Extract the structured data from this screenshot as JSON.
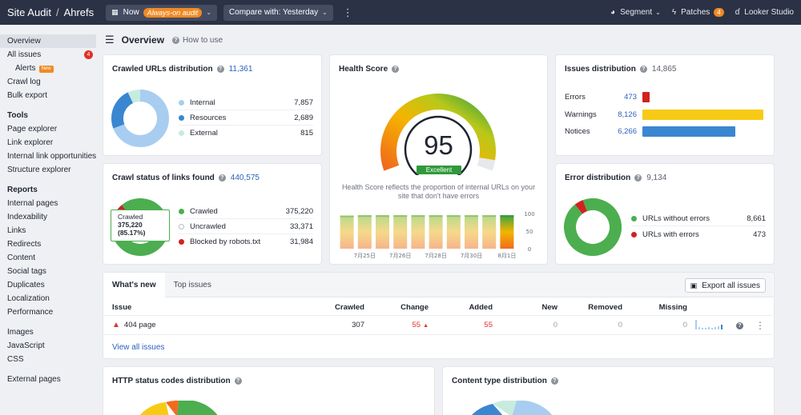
{
  "topbar": {
    "app": "Site Audit",
    "separator": "/",
    "project": "Ahrefs",
    "now_label": "Now",
    "now_badge": "Always-on audit",
    "compare_label": "Compare with: Yesterday",
    "segment_label": "Segment",
    "patches_label": "Patches",
    "patches_count": "4",
    "looker_label": "Looker Studio"
  },
  "sidebar": {
    "overview": "Overview",
    "all_issues": "All issues",
    "all_issues_count": "4",
    "alerts": "Alerts",
    "alerts_tag": "New",
    "crawl_log": "Crawl log",
    "bulk_export": "Bulk export",
    "tools_heading": "Tools",
    "tools": [
      "Page explorer",
      "Link explorer",
      "Internal link opportunities",
      "Structure explorer"
    ],
    "reports_heading": "Reports",
    "reports": [
      "Internal pages",
      "Indexability",
      "Links",
      "Redirects",
      "Content",
      "Social tags",
      "Duplicates",
      "Localization",
      "Performance"
    ],
    "resources": [
      "Images",
      "JavaScript",
      "CSS"
    ],
    "external": "External pages"
  },
  "header": {
    "title": "Overview",
    "howto": "How to use"
  },
  "crawled_urls": {
    "title": "Crawled URLs distribution",
    "total": "11,361",
    "items": [
      {
        "label": "Internal",
        "value": "7,857",
        "count": 7857,
        "color": "#a8cdf0"
      },
      {
        "label": "Resources",
        "value": "2,689",
        "count": 2689,
        "color": "#3a86d1"
      },
      {
        "label": "External",
        "value": "815",
        "count": 815,
        "color": "#c8ebe0"
      }
    ]
  },
  "crawl_status": {
    "title": "Crawl status of links found",
    "total": "440,575",
    "tooltip_label": "Crawled",
    "tooltip_value": "375,220",
    "tooltip_pct": "(85.17%)",
    "items": [
      {
        "label": "Crawled",
        "value": "375,220",
        "count": 375220,
        "color": "#4cae4f"
      },
      {
        "label": "Uncrawled",
        "value": "33,371",
        "count": 33371,
        "color": "#e2e5ea"
      },
      {
        "label": "Blocked by robots.txt",
        "value": "31,984",
        "count": 31984,
        "color": "#d0231f"
      }
    ]
  },
  "health": {
    "title": "Health Score",
    "score": "95",
    "score_value": 95,
    "rating": "Excellent",
    "caption": "Health Score reflects the proportion of internal URLs on your site that don't have errors",
    "chart_data": {
      "type": "bar",
      "categories": [
        "",
        "7月25日",
        "",
        "7月26日",
        "",
        "7月28日",
        "",
        "7月30日",
        "",
        "8月1日"
      ],
      "values": [
        94,
        95,
        95,
        95,
        95,
        95,
        95,
        95,
        95,
        95
      ],
      "ylim": [
        0,
        100
      ],
      "yticks": [
        "100",
        "50",
        "0"
      ]
    }
  },
  "issues_dist": {
    "title": "Issues distribution",
    "total": "14,865",
    "items": [
      {
        "label": "Errors",
        "value": "473",
        "count": 473,
        "color": "#d0231f"
      },
      {
        "label": "Warnings",
        "value": "8,126",
        "count": 8126,
        "color": "#f7cb15"
      },
      {
        "label": "Notices",
        "value": "6,266",
        "count": 6266,
        "color": "#3a86d1"
      }
    ]
  },
  "error_dist": {
    "title": "Error distribution",
    "total": "9,134",
    "items": [
      {
        "label": "URLs without errors",
        "value": "8,661",
        "count": 8661,
        "color": "#4cae4f"
      },
      {
        "label": "URLs with errors",
        "value": "473",
        "count": 473,
        "color": "#d0231f"
      }
    ]
  },
  "whats_new": {
    "tabs": [
      "What's new",
      "Top issues"
    ],
    "export_label": "Export all issues",
    "columns": [
      "Issue",
      "Crawled",
      "Change",
      "Added",
      "New",
      "Removed",
      "Missing"
    ],
    "row": {
      "issue": "404 page",
      "crawled": "307",
      "change": "55",
      "added": "55",
      "new": "0",
      "removed": "0",
      "missing": "0"
    },
    "view_all": "View all issues"
  },
  "http_status": {
    "title": "HTTP status codes distribution"
  },
  "content_type": {
    "title": "Content type distribution"
  }
}
